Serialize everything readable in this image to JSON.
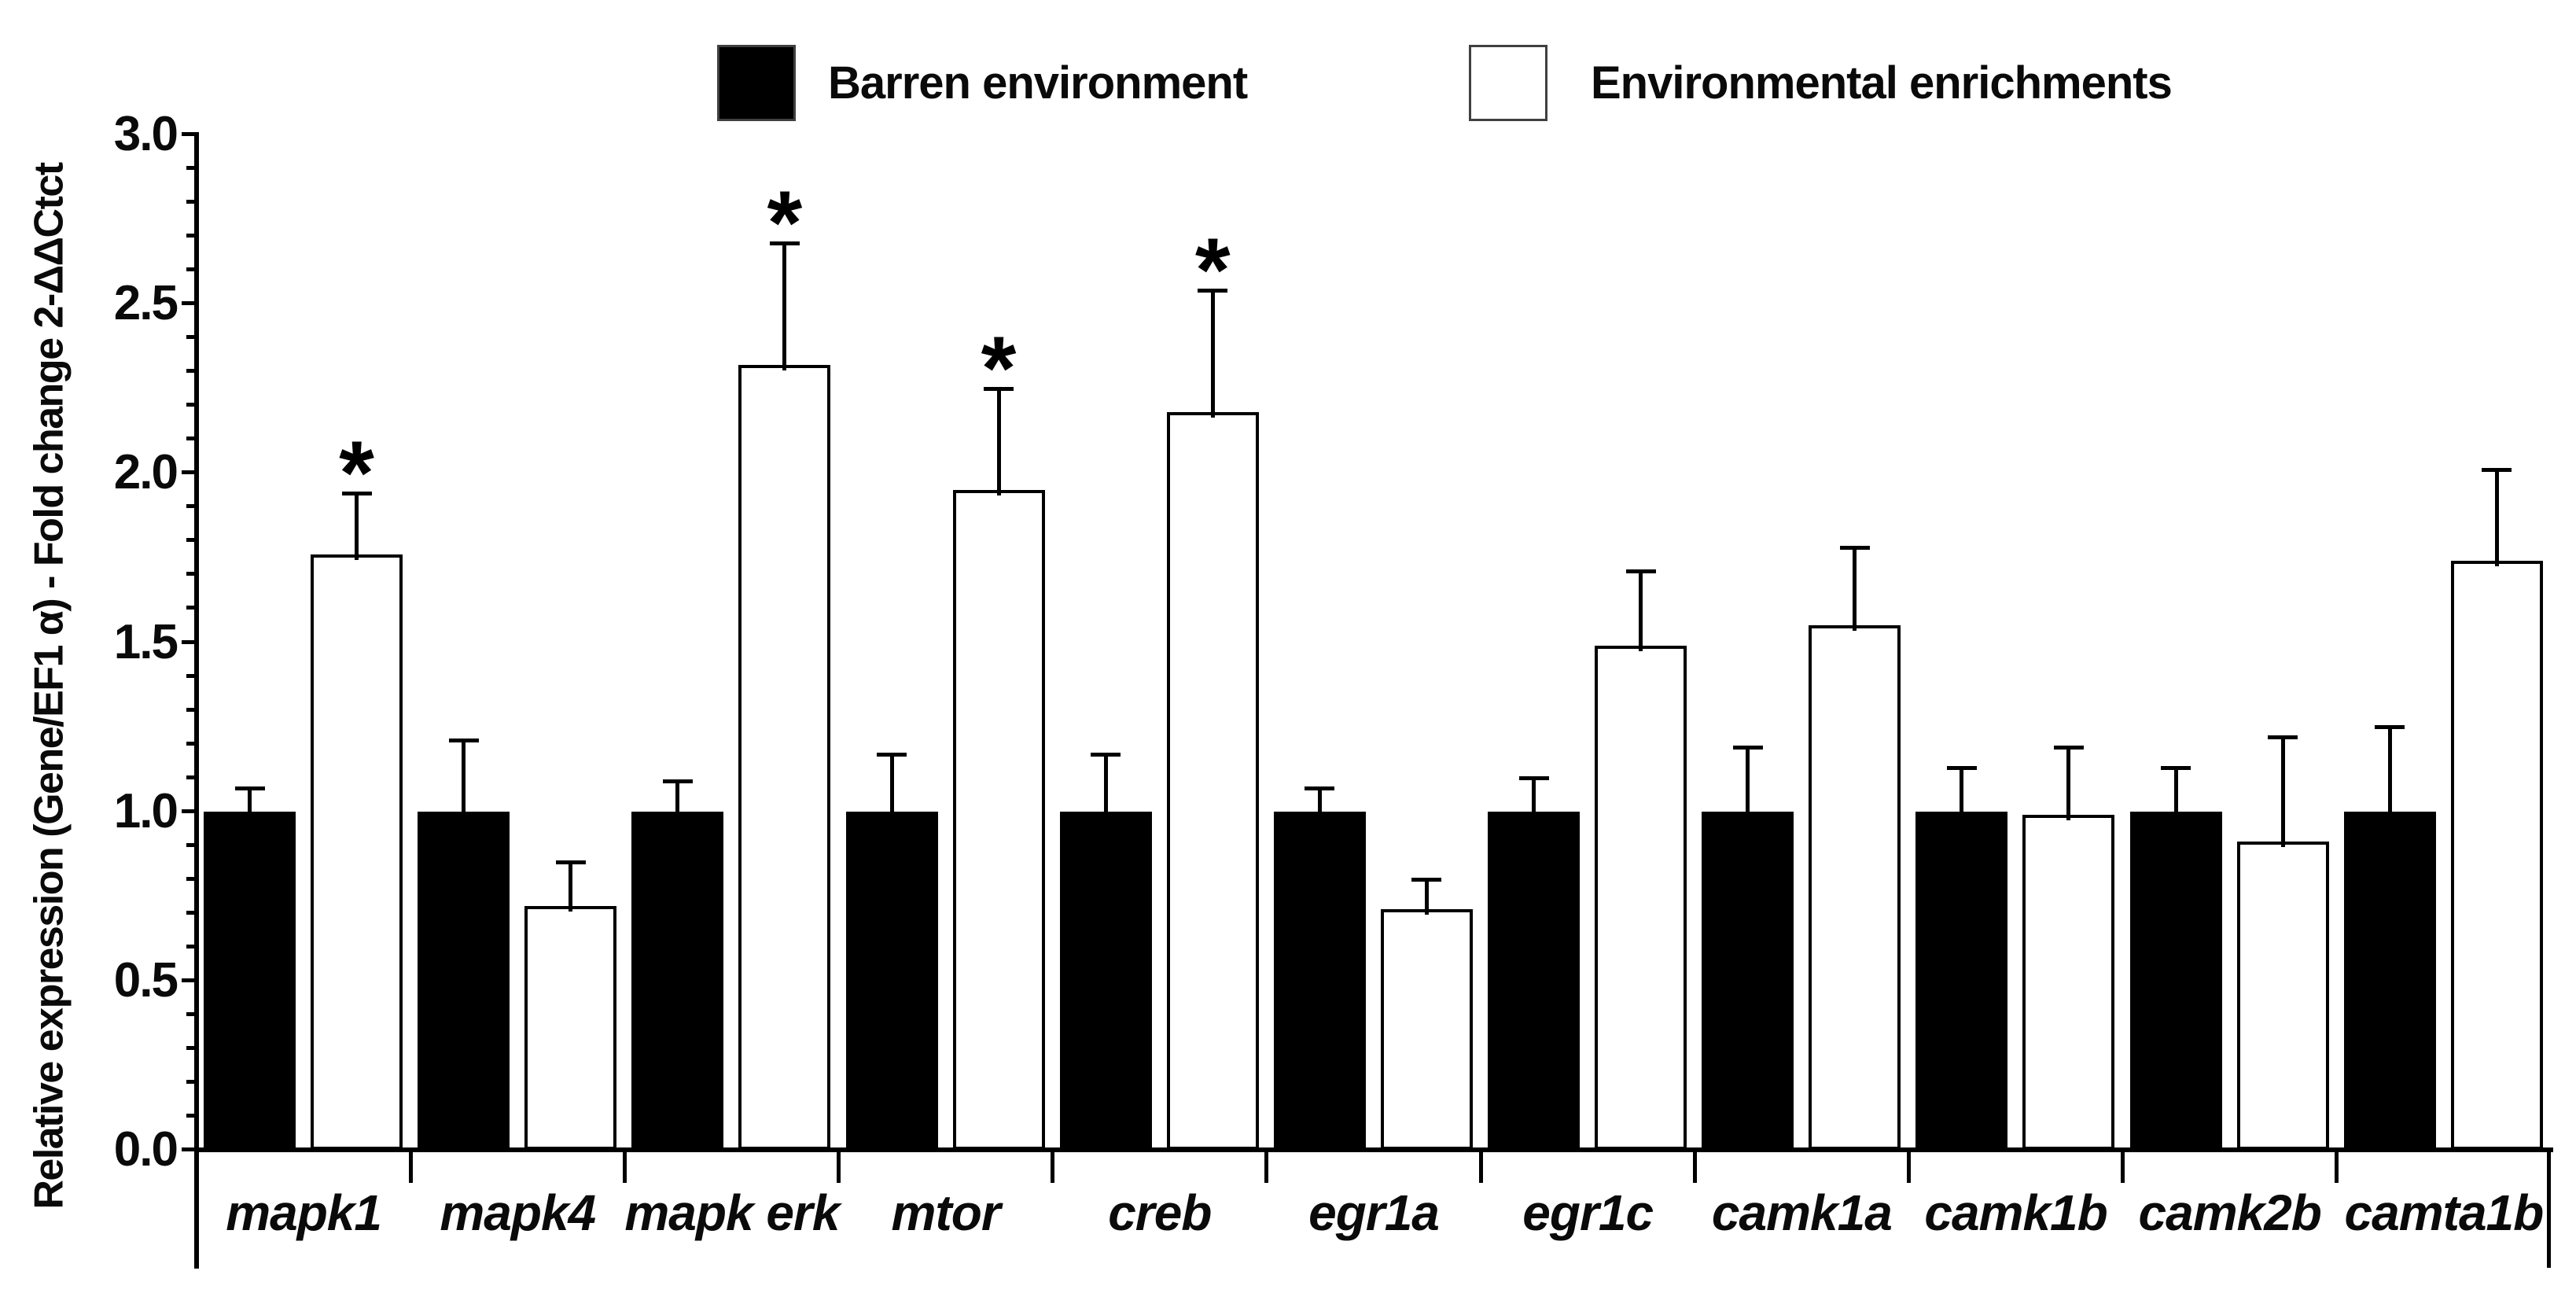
{
  "figure": {
    "background_color": "#ffffff"
  },
  "chart_data": {
    "type": "bar",
    "title": "",
    "xlabel": "",
    "ylabel": "Relative expression (Gene/EF1 α) - Fold change 2-ΔΔCtct",
    "ylim": [
      0.0,
      3.0
    ],
    "ytick_step_major": 0.5,
    "ytick_step_minor": 0.1,
    "ytick_labels": [
      "0.0",
      "0.5",
      "1.0",
      "1.5",
      "2.0",
      "2.5",
      "3.0"
    ],
    "grid": false,
    "legend_position": "top-center",
    "categories": [
      "mapk1",
      "mapk4",
      "mapk erk",
      "mtor",
      "creb",
      "egr1a",
      "egr1c",
      "camk1a",
      "camk1b",
      "camk2b",
      "camta1b"
    ],
    "series": [
      {
        "name": "Barren environment",
        "fill": "#000000",
        "outline": "#000000",
        "values": [
          1.0,
          1.0,
          1.0,
          1.0,
          1.0,
          1.0,
          1.0,
          1.0,
          1.0,
          1.0,
          1.0
        ],
        "error_top": [
          1.07,
          1.21,
          1.09,
          1.17,
          1.17,
          1.07,
          1.1,
          1.19,
          1.13,
          1.13,
          1.25
        ]
      },
      {
        "name": "Environmental enrichments",
        "fill": "#ffffff",
        "outline": "#000000",
        "values": [
          1.76,
          0.72,
          2.32,
          1.95,
          2.18,
          0.71,
          1.49,
          1.55,
          0.99,
          0.91,
          1.74
        ],
        "error_top": [
          1.94,
          0.85,
          2.68,
          2.25,
          2.54,
          0.8,
          1.71,
          1.78,
          1.19,
          1.22,
          2.01
        ]
      }
    ],
    "significance_marker": "*",
    "significant_categories": [
      "mapk1",
      "mapk erk",
      "mtor",
      "creb"
    ]
  }
}
